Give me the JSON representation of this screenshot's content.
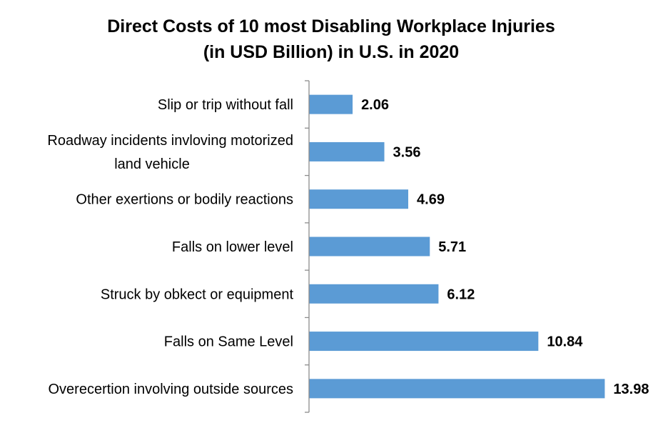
{
  "chart_data": {
    "type": "bar",
    "orientation": "horizontal",
    "title_lines": [
      "Direct Costs of 10 most Disabling Workplace Injuries",
      "(in USD Billion) in U.S. in 2020"
    ],
    "categories": [
      [
        "Slip or trip without fall"
      ],
      [
        "Roadway incidents invloving motorized",
        "land vehicle"
      ],
      [
        "Other exertions or bodily  reactions"
      ],
      [
        "Falls on lower level"
      ],
      [
        "Struck by obkect or equipment"
      ],
      [
        "Falls on Same Level"
      ],
      [
        "Overecertion involving outside sources"
      ]
    ],
    "values": [
      2.06,
      3.56,
      4.69,
      5.71,
      6.12,
      10.84,
      13.98
    ],
    "value_labels": [
      "2.06",
      "3.56",
      "4.69",
      "5.71",
      "6.12",
      "10.84",
      "13.98"
    ],
    "xlim": [
      0,
      14
    ],
    "grid": false,
    "legend": "none",
    "bar_color": "#5B9BD5",
    "axis_color": "#8C8C8C"
  }
}
